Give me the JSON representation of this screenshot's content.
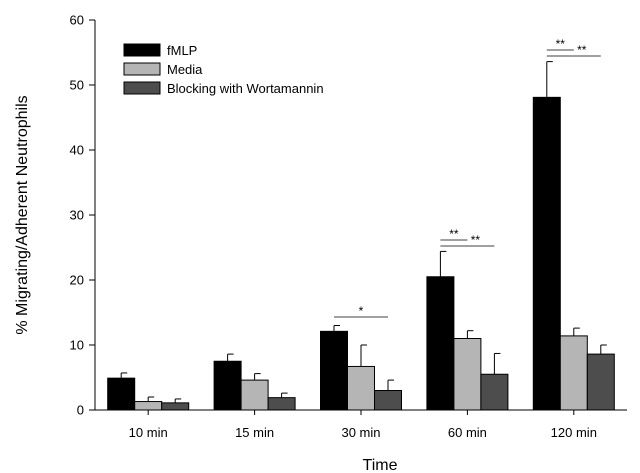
{
  "chart_data": {
    "type": "bar",
    "xlabel": "Time",
    "ylabel": "% Migrating/Adherent Neutrophils",
    "ylim": [
      0,
      60
    ],
    "yticks": [
      "0",
      "10",
      "20",
      "30",
      "40",
      "50",
      "60"
    ],
    "categories": [
      "10 min",
      "15 min",
      "30 min",
      "60 min",
      "120 min"
    ],
    "legend_position": "top-left",
    "series": [
      {
        "name": "fMLP",
        "color": "#000000",
        "values": [
          4.9,
          7.5,
          12.1,
          20.5,
          48.1
        ],
        "errors": [
          0.8,
          1.1,
          0.9,
          3.9,
          5.5
        ]
      },
      {
        "name": "Media",
        "color": "#b5b5b5",
        "values": [
          1.3,
          4.6,
          6.7,
          11.0,
          11.4
        ],
        "errors": [
          0.7,
          1.0,
          3.3,
          1.2,
          1.2
        ]
      },
      {
        "name": "Blocking with Wortamannin",
        "color": "#4d4d4d",
        "values": [
          1.1,
          1.9,
          3.0,
          5.5,
          8.6
        ],
        "errors": [
          0.6,
          0.7,
          1.6,
          3.2,
          1.4
        ]
      }
    ],
    "annotations": [
      {
        "category": "30 min",
        "text": "*"
      },
      {
        "category": "60 min",
        "text": "**"
      },
      {
        "category": "60 min",
        "text": "**"
      },
      {
        "category": "120 min",
        "text": "**"
      },
      {
        "category": "120 min",
        "text": "**"
      }
    ]
  }
}
